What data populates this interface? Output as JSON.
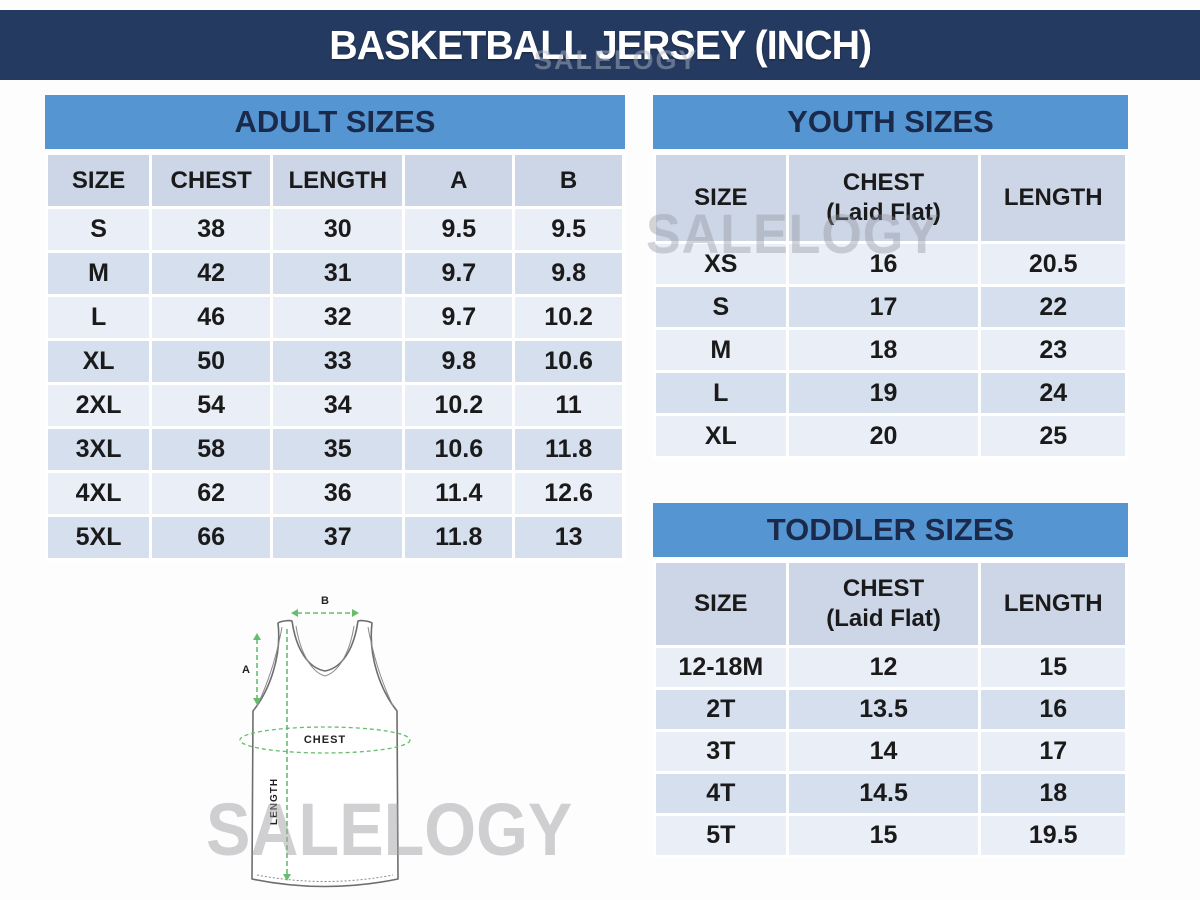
{
  "page": {
    "title": "BASKETBALL JERSEY (INCH)",
    "watermark": "SALELOGY"
  },
  "colors": {
    "navy": "#253a60",
    "blue": "#5596d2",
    "colhead": "#cdd6e7",
    "rowlight": "#eaeef7",
    "rowdark": "#d6dfee",
    "green": "#67bd6e",
    "jerseyline": "#6e6e6e"
  },
  "tables": {
    "adult": {
      "title": "ADULT SIZES",
      "columns": [
        "SIZE",
        "CHEST",
        "LENGTH",
        "A",
        "B"
      ],
      "rows": [
        [
          "S",
          "38",
          "30",
          "9.5",
          "9.5"
        ],
        [
          "M",
          "42",
          "31",
          "9.7",
          "9.8"
        ],
        [
          "L",
          "46",
          "32",
          "9.7",
          "10.2"
        ],
        [
          "XL",
          "50",
          "33",
          "9.8",
          "10.6"
        ],
        [
          "2XL",
          "54",
          "34",
          "10.2",
          "11"
        ],
        [
          "3XL",
          "58",
          "35",
          "10.6",
          "11.8"
        ],
        [
          "4XL",
          "62",
          "36",
          "11.4",
          "12.6"
        ],
        [
          "5XL",
          "66",
          "37",
          "11.8",
          "13"
        ]
      ]
    },
    "youth": {
      "title": "YOUTH SIZES",
      "columns": [
        "SIZE",
        "CHEST\n(Laid Flat)",
        "LENGTH"
      ],
      "rows": [
        [
          "XS",
          "16",
          "20.5"
        ],
        [
          "S",
          "17",
          "22"
        ],
        [
          "M",
          "18",
          "23"
        ],
        [
          "L",
          "19",
          "24"
        ],
        [
          "XL",
          "20",
          "25"
        ]
      ]
    },
    "toddler": {
      "title": "TODDLER SIZES",
      "columns": [
        "SIZE",
        "CHEST\n(Laid Flat)",
        "LENGTH"
      ],
      "rows": [
        [
          "12-18M",
          "12",
          "15"
        ],
        [
          "2T",
          "13.5",
          "16"
        ],
        [
          "3T",
          "14",
          "17"
        ],
        [
          "4T",
          "14.5",
          "18"
        ],
        [
          "5T",
          "15",
          "19.5"
        ]
      ]
    }
  },
  "diagram": {
    "label_a": "A",
    "label_b": "B",
    "label_chest": "CHEST",
    "label_length": "LENGTH"
  }
}
